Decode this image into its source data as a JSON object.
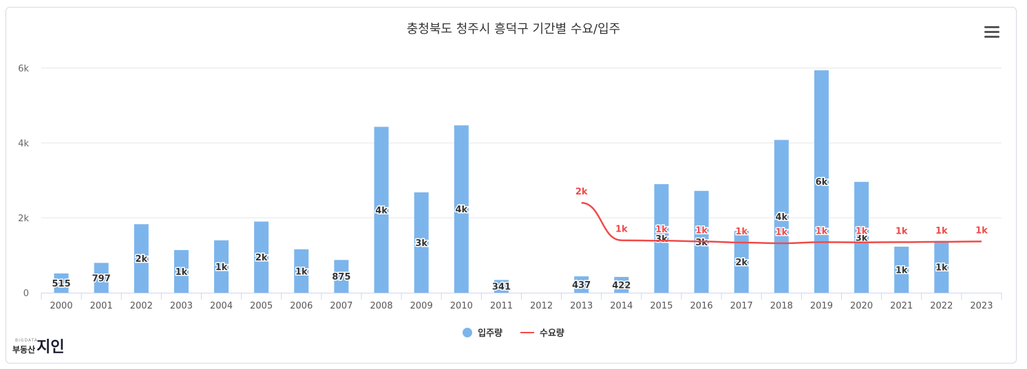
{
  "title": "충청북도 청주시 흥덕구 기간별 수요/입주",
  "legend": {
    "supply": "입주량",
    "demand": "수요량"
  },
  "logo": {
    "small": "BIGDATA",
    "main": "부동산",
    "accent": "지인"
  },
  "colors": {
    "bar": "#7cb5ec",
    "line": "#f04a4a",
    "grid": "#e6e6e6",
    "axis": "#ccd6eb",
    "tick": "#666666"
  },
  "icons": {
    "menu": "hamburger-menu-icon"
  },
  "chart_data": {
    "type": "bar",
    "categories": [
      "2000",
      "2001",
      "2002",
      "2003",
      "2004",
      "2005",
      "2006",
      "2007",
      "2008",
      "2009",
      "2010",
      "2011",
      "2012",
      "2013",
      "2014",
      "2015",
      "2016",
      "2017",
      "2018",
      "2019",
      "2020",
      "2021",
      "2022",
      "2023"
    ],
    "ylim": [
      0,
      6000
    ],
    "yticks": [
      0,
      2000,
      4000,
      6000
    ],
    "ytick_labels": [
      "0",
      "2k",
      "4k",
      "6k"
    ],
    "series": [
      {
        "name": "입주량",
        "type": "bar",
        "values": [
          515,
          797,
          1830,
          1140,
          1400,
          1900,
          1160,
          875,
          4430,
          2680,
          4470,
          341,
          0,
          437,
          422,
          2900,
          2720,
          1650,
          4080,
          5940,
          2960,
          1230,
          1380,
          null
        ],
        "labels": [
          "515",
          "797",
          "2k",
          "1k",
          "1k",
          "2k",
          "1k",
          "875",
          "4k",
          "3k",
          "4k",
          "341",
          "",
          "437",
          "422",
          "3k",
          "3k",
          "2k",
          "4k",
          "6k",
          "3k",
          "1k",
          "1k",
          ""
        ]
      },
      {
        "name": "수요량",
        "type": "line",
        "values": [
          null,
          null,
          null,
          null,
          null,
          null,
          null,
          null,
          null,
          null,
          null,
          null,
          null,
          2400,
          1400,
          1390,
          1370,
          1340,
          1320,
          1350,
          1345,
          1350,
          1360,
          1370
        ],
        "labels": [
          "",
          "",
          "",
          "",
          "",
          "",
          "",
          "",
          "",
          "",
          "",
          "",
          "",
          "2k",
          "1k",
          "1k",
          "1k",
          "1k",
          "1k",
          "1k",
          "1k",
          "1k",
          "1k",
          "1k"
        ]
      }
    ]
  }
}
